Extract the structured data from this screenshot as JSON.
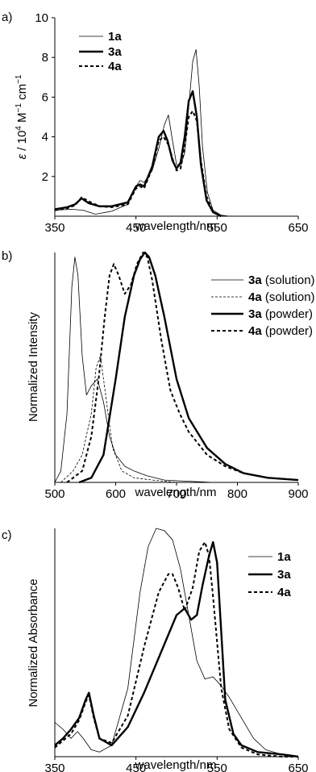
{
  "chart_data": [
    {
      "panel_label": "a)",
      "type": "line",
      "xlabel": "wavelength/nm",
      "ylabel_parts": {
        "eps": "ε",
        "sep": " / 10",
        "exp1": "4",
        "unit1": " M",
        "exp2": "−1",
        "unit2": " cm",
        "exp3": "−1"
      },
      "xlim": [
        350,
        650
      ],
      "ylim": [
        0,
        10
      ],
      "xticks": [
        350,
        450,
        550,
        650
      ],
      "yticks": [
        2,
        4,
        6,
        8,
        10
      ],
      "legend_position": "top-left",
      "series": [
        {
          "name": "1a",
          "style": "thin",
          "x": [
            350,
            370,
            385,
            400,
            420,
            440,
            450,
            455,
            460,
            470,
            478,
            485,
            490,
            495,
            500,
            505,
            510,
            515,
            520,
            524,
            528,
            532,
            538,
            545,
            555,
            565
          ],
          "y": [
            0.3,
            0.35,
            0.3,
            0.1,
            0.25,
            0.6,
            1.5,
            1.8,
            1.7,
            2.3,
            3.4,
            4.6,
            5.1,
            3.8,
            2.6,
            2.5,
            3.2,
            5.5,
            7.8,
            8.4,
            6.5,
            3.5,
            1.2,
            0.3,
            0.05,
            0
          ]
        },
        {
          "name": "3a",
          "style": "thick",
          "x": [
            350,
            365,
            375,
            383,
            392,
            405,
            420,
            440,
            450,
            455,
            460,
            470,
            478,
            484,
            489,
            495,
            500,
            505,
            510,
            515,
            520,
            525,
            530,
            537,
            545,
            555
          ],
          "y": [
            0.35,
            0.45,
            0.6,
            0.9,
            0.65,
            0.5,
            0.5,
            0.7,
            1.5,
            1.6,
            1.5,
            2.5,
            4.0,
            4.3,
            3.8,
            2.8,
            2.4,
            2.7,
            4.0,
            5.8,
            6.3,
            5.0,
            2.6,
            0.8,
            0.2,
            0
          ]
        },
        {
          "name": "4a",
          "style": "dashed",
          "x": [
            350,
            365,
            375,
            383,
            392,
            405,
            420,
            440,
            450,
            455,
            460,
            470,
            478,
            484,
            490,
            495,
            500,
            505,
            510,
            515,
            520,
            525,
            530,
            537,
            545,
            555
          ],
          "y": [
            0.3,
            0.4,
            0.55,
            0.95,
            0.75,
            0.5,
            0.45,
            0.6,
            1.4,
            1.5,
            1.4,
            2.4,
            3.8,
            4.0,
            3.6,
            2.9,
            2.3,
            2.4,
            3.5,
            5.0,
            5.3,
            4.8,
            2.8,
            1.0,
            0.2,
            0
          ]
        }
      ]
    },
    {
      "panel_label": "b)",
      "type": "line",
      "xlabel": "wavelength/nm",
      "ylabel": "Normalized Intensity",
      "xlim": [
        500,
        900
      ],
      "ylim": [
        0,
        1.0
      ],
      "xticks": [
        500,
        600,
        700,
        800,
        900
      ],
      "yticks": [],
      "legend_position": "top-right",
      "series": [
        {
          "name": "3a",
          "suffix": " (solution)",
          "style": "thin",
          "x": [
            500,
            510,
            520,
            528,
            533,
            538,
            545,
            552,
            560,
            570,
            580,
            590,
            600,
            615,
            630,
            650,
            680,
            720,
            760
          ],
          "y": [
            0.0,
            0.05,
            0.3,
            0.85,
            0.98,
            0.9,
            0.55,
            0.38,
            0.42,
            0.45,
            0.35,
            0.2,
            0.12,
            0.07,
            0.05,
            0.03,
            0.01,
            0.005,
            0
          ]
        },
        {
          "name": "4a",
          "suffix": " (solution)",
          "style": "thin-dashed",
          "x": [
            510,
            530,
            545,
            560,
            568,
            575,
            585,
            595,
            610,
            630,
            660,
            700
          ],
          "y": [
            0.0,
            0.05,
            0.12,
            0.3,
            0.5,
            0.55,
            0.35,
            0.15,
            0.05,
            0.02,
            0.01,
            0
          ]
        },
        {
          "name": "3a",
          "suffix": " (powder)",
          "style": "thick",
          "x": [
            540,
            560,
            580,
            600,
            615,
            630,
            640,
            648,
            655,
            665,
            680,
            700,
            720,
            750,
            780,
            810,
            850,
            900
          ],
          "y": [
            0.0,
            0.02,
            0.12,
            0.45,
            0.72,
            0.9,
            0.97,
            1.0,
            0.98,
            0.9,
            0.72,
            0.45,
            0.28,
            0.15,
            0.08,
            0.04,
            0.02,
            0.01
          ]
        },
        {
          "name": "4a",
          "suffix": " (powder)",
          "style": "dashed",
          "x": [
            520,
            545,
            560,
            572,
            582,
            590,
            597,
            605,
            615,
            625,
            635,
            645,
            652,
            660,
            675,
            690,
            705,
            720,
            750,
            780,
            810,
            850,
            900
          ],
          "y": [
            0.0,
            0.05,
            0.2,
            0.45,
            0.72,
            0.9,
            0.95,
            0.9,
            0.82,
            0.86,
            0.95,
            1.0,
            0.98,
            0.88,
            0.62,
            0.4,
            0.3,
            0.22,
            0.12,
            0.07,
            0.04,
            0.02,
            0.01
          ]
        }
      ]
    },
    {
      "panel_label": "c)",
      "type": "line",
      "xlabel": "wavelength/nm",
      "ylabel": "Normalized Absorbance",
      "xlim": [
        350,
        650
      ],
      "ylim": [
        0,
        1.0
      ],
      "xticks": [
        350,
        450,
        550,
        650
      ],
      "yticks": [],
      "legend_position": "right",
      "series": [
        {
          "name": "1a",
          "style": "thin",
          "x": [
            350,
            360,
            370,
            378,
            385,
            395,
            405,
            420,
            440,
            455,
            465,
            475,
            485,
            495,
            505,
            515,
            525,
            535,
            545,
            555,
            565,
            580,
            595,
            610,
            630,
            650
          ],
          "y": [
            0.15,
            0.12,
            0.08,
            0.11,
            0.08,
            0.03,
            0.02,
            0.05,
            0.3,
            0.72,
            0.92,
            1.0,
            0.99,
            0.95,
            0.82,
            0.62,
            0.42,
            0.34,
            0.35,
            0.31,
            0.26,
            0.17,
            0.08,
            0.03,
            0.01,
            0
          ]
        },
        {
          "name": "3a",
          "style": "thick",
          "x": [
            350,
            360,
            370,
            380,
            388,
            392,
            398,
            405,
            420,
            440,
            460,
            480,
            500,
            510,
            518,
            525,
            532,
            540,
            545,
            550,
            555,
            560,
            570,
            580,
            600,
            630,
            650
          ],
          "y": [
            0.05,
            0.08,
            0.12,
            0.17,
            0.25,
            0.28,
            0.18,
            0.08,
            0.05,
            0.13,
            0.28,
            0.45,
            0.62,
            0.65,
            0.6,
            0.62,
            0.75,
            0.88,
            0.94,
            0.85,
            0.55,
            0.25,
            0.1,
            0.05,
            0.02,
            0.01,
            0
          ]
        },
        {
          "name": "4a",
          "style": "dashed",
          "x": [
            350,
            360,
            370,
            380,
            388,
            392,
            398,
            405,
            420,
            440,
            460,
            478,
            490,
            495,
            502,
            510,
            520,
            528,
            535,
            540,
            545,
            555,
            565,
            580,
            600,
            630,
            650
          ],
          "y": [
            0.04,
            0.07,
            0.1,
            0.16,
            0.24,
            0.27,
            0.17,
            0.08,
            0.06,
            0.18,
            0.48,
            0.72,
            0.8,
            0.8,
            0.74,
            0.64,
            0.74,
            0.9,
            0.94,
            0.88,
            0.7,
            0.3,
            0.12,
            0.04,
            0.01,
            0,
            0
          ]
        }
      ]
    }
  ]
}
